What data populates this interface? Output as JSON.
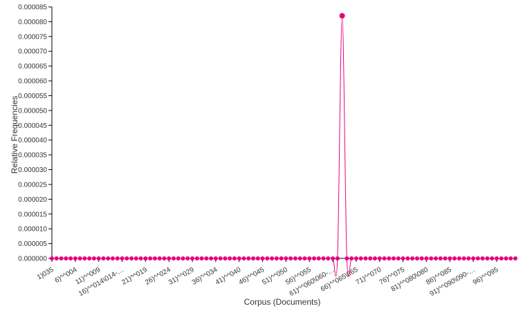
{
  "chart_data": {
    "type": "line",
    "xlabel": "Corpus (Documents)",
    "ylabel": "Relative Frequencies",
    "ylim": [
      0,
      8.5e-05
    ],
    "y_ticks": [
      "0.000000",
      "0.000005",
      "0.000010",
      "0.000015",
      "0.000020",
      "0.000025",
      "0.000030",
      "0.000035",
      "0.000040",
      "0.000045",
      "0.000050",
      "0.000055",
      "0.000060",
      "0.000065",
      "0.000070",
      "0.000075",
      "0.000080",
      "0.000085"
    ],
    "x_count": 100,
    "x_tick_labels": [
      {
        "index": 0,
        "label": "1)035"
      },
      {
        "index": 5,
        "label": "6)^^004"
      },
      {
        "index": 10,
        "label": "11)^^009"
      },
      {
        "index": 15,
        "label": "16)^^014\\014-…"
      },
      {
        "index": 20,
        "label": "21)^^019"
      },
      {
        "index": 25,
        "label": "26)^^024"
      },
      {
        "index": 30,
        "label": "31)^^029"
      },
      {
        "index": 35,
        "label": "36)^^034"
      },
      {
        "index": 40,
        "label": "41)^^040"
      },
      {
        "index": 45,
        "label": "46)^^045"
      },
      {
        "index": 50,
        "label": "51)^^050"
      },
      {
        "index": 55,
        "label": "56)^^055"
      },
      {
        "index": 60,
        "label": "61)^^060\\060-…"
      },
      {
        "index": 65,
        "label": "66)^^065\\065"
      },
      {
        "index": 70,
        "label": "71)^^070"
      },
      {
        "index": 75,
        "label": "76)^^075"
      },
      {
        "index": 80,
        "label": "81)^^080\\080"
      },
      {
        "index": 85,
        "label": "86)^^085"
      },
      {
        "index": 90,
        "label": "91)^^090\\090-…"
      },
      {
        "index": 95,
        "label": "96)^^095"
      }
    ],
    "series": [
      {
        "color": "#e6007e",
        "values": [
          0,
          0,
          0,
          0,
          0,
          0,
          0,
          0,
          0,
          0,
          0,
          0,
          0,
          0,
          0,
          0,
          0,
          0,
          0,
          0,
          0,
          0,
          0,
          0,
          0,
          0,
          0,
          0,
          0,
          0,
          0,
          0,
          0,
          0,
          0,
          0,
          0,
          0,
          0,
          0,
          0,
          0,
          0,
          0,
          0,
          0,
          0,
          0,
          0,
          0,
          0,
          0,
          0,
          0,
          0,
          0,
          0,
          0,
          0,
          0,
          0,
          0,
          8.2e-05,
          0,
          0,
          0,
          0,
          0,
          0,
          0,
          0,
          0,
          0,
          0,
          0,
          0,
          0,
          0,
          0,
          0,
          0,
          0,
          0,
          0,
          0,
          0,
          0,
          0,
          0,
          0,
          0,
          0,
          0,
          0,
          0,
          0,
          0,
          0,
          0,
          0
        ]
      }
    ],
    "grid": false,
    "legend": "none"
  }
}
